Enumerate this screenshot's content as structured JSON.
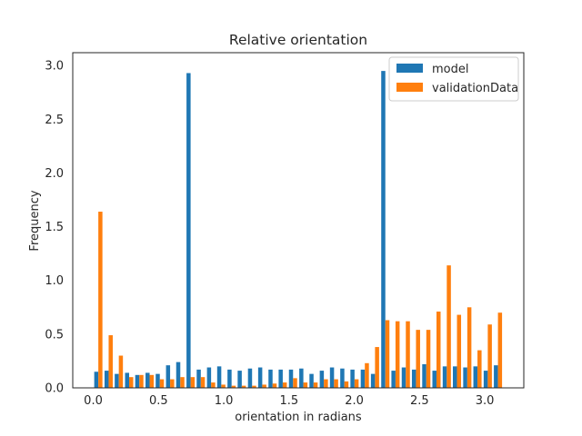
{
  "chart_data": {
    "type": "bar",
    "title": "Relative orientation",
    "xlabel": "orientation in radians",
    "ylabel": "Frequency",
    "xlim": [
      -0.157,
      3.299
    ],
    "ylim": [
      0,
      3.12
    ],
    "xticks": [
      "0.0",
      "0.5",
      "1.0",
      "1.5",
      "2.0",
      "2.5",
      "3.0"
    ],
    "yticks": [
      "0.0",
      "0.5",
      "1.0",
      "1.5",
      "2.0",
      "2.5",
      "3.0"
    ],
    "bin_width": 0.0785,
    "legend_position": "upper right",
    "grid": false,
    "x": [
      0.039,
      0.118,
      0.196,
      0.275,
      0.353,
      0.432,
      0.51,
      0.589,
      0.667,
      0.746,
      0.824,
      0.903,
      0.981,
      1.06,
      1.138,
      1.217,
      1.295,
      1.374,
      1.452,
      1.531,
      1.61,
      1.688,
      1.767,
      1.845,
      1.924,
      2.002,
      2.081,
      2.159,
      2.238,
      2.316,
      2.395,
      2.473,
      2.552,
      2.63,
      2.709,
      2.787,
      2.866,
      2.944,
      3.023,
      3.101
    ],
    "series": [
      {
        "name": "model",
        "color": "#1f77b4",
        "values": [
          0.15,
          0.16,
          0.13,
          0.14,
          0.12,
          0.14,
          0.13,
          0.21,
          0.24,
          2.93,
          0.17,
          0.19,
          0.2,
          0.17,
          0.16,
          0.18,
          0.19,
          0.17,
          0.17,
          0.17,
          0.18,
          0.13,
          0.16,
          0.19,
          0.18,
          0.17,
          0.17,
          0.13,
          2.95,
          0.16,
          0.19,
          0.17,
          0.22,
          0.16,
          0.2,
          0.2,
          0.19,
          0.2,
          0.16,
          0.21
        ]
      },
      {
        "name": "validationData",
        "color": "#ff7f0e",
        "values": [
          1.64,
          0.49,
          0.3,
          0.1,
          0.12,
          0.12,
          0.08,
          0.08,
          0.1,
          0.1,
          0.1,
          0.05,
          0.03,
          0.02,
          0.02,
          0.02,
          0.03,
          0.04,
          0.05,
          0.09,
          0.05,
          0.05,
          0.08,
          0.08,
          0.06,
          0.08,
          0.23,
          0.38,
          0.63,
          0.62,
          0.62,
          0.54,
          0.54,
          0.71,
          1.14,
          0.68,
          0.75,
          0.35,
          0.59,
          0.7
        ]
      }
    ]
  }
}
